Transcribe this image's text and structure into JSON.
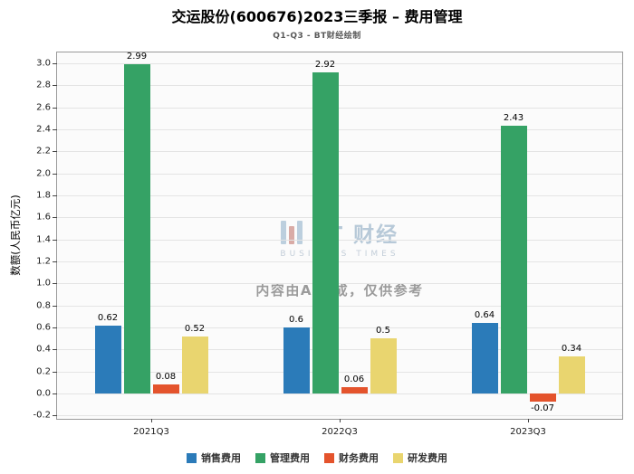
{
  "header": {
    "title": "交运股份(600676)2023三季报 – 费用管理",
    "subtitle": "Q1-Q3 - BT财经绘制"
  },
  "watermark": {
    "brand": "BT 财经",
    "brand_sub": "BUSINESS TIMES",
    "disclaimer": "内容由AI生成，仅供参考"
  },
  "chart_data": {
    "type": "bar",
    "title": "交运股份(600676)2023三季报 – 费用管理",
    "subtitle": "Q1-Q3 - BT财经绘制",
    "categories": [
      "2021Q3",
      "2022Q3",
      "2023Q3"
    ],
    "series": [
      {
        "key": "selling-expense",
        "name": "销售费用",
        "color": "#2b7bb9",
        "values": [
          0.62,
          0.6,
          0.64
        ]
      },
      {
        "key": "admin-expense",
        "name": "管理费用",
        "color": "#35a265",
        "values": [
          2.99,
          2.92,
          2.43
        ]
      },
      {
        "key": "finance-expense",
        "name": "财务费用",
        "color": "#e4532c",
        "values": [
          0.08,
          0.06,
          -0.07
        ]
      },
      {
        "key": "rd-expense",
        "name": "研发费用",
        "color": "#e9d56f",
        "values": [
          0.52,
          0.5,
          0.34
        ]
      }
    ],
    "xlabel": "",
    "ylabel": "数额(人民币亿元)",
    "ylim": [
      -0.2,
      3.0
    ],
    "ytick_step": 0.2,
    "grid": true,
    "value_labels": true,
    "legend_position": "bottom"
  }
}
